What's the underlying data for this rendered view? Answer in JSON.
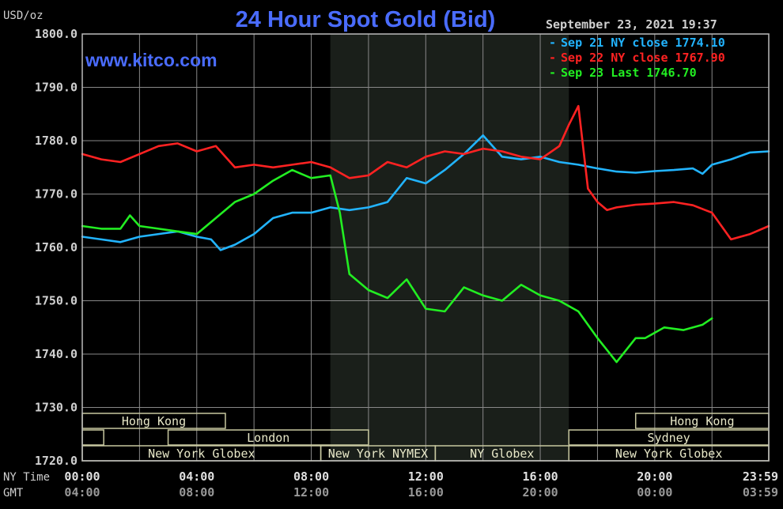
{
  "chart_data": {
    "type": "line",
    "title": "24 Hour Spot Gold (Bid)",
    "subtitle": "www.kitco.com",
    "ylabel": "USD/oz",
    "timestamp": "September 23, 2021 19:37",
    "ylim": [
      1720,
      1800
    ],
    "yticks": [
      "1800.0",
      "1790.0",
      "1780.0",
      "1770.0",
      "1760.0",
      "1750.0",
      "1740.0",
      "1730.0",
      "1720.0"
    ],
    "xlim": [
      0,
      1439
    ],
    "x_axis_labels": {
      "ny_label": "NY Time",
      "gmt_label": "GMT",
      "ny": [
        "00:00",
        "04:00",
        "08:00",
        "12:00",
        "16:00",
        "20:00",
        "23:59"
      ],
      "gmt": [
        "04:00",
        "08:00",
        "12:00",
        "16:00",
        "20:00",
        "00:00",
        "03:59"
      ]
    },
    "colors": {
      "background": "#000000",
      "grid": "#888888",
      "axis": "#bbbbbb",
      "title": "#4a6cff",
      "ny_session_shade": "#1a1f1a",
      "sep21": "#22b4ff",
      "sep22": "#ff2222",
      "sep23": "#22ee22"
    },
    "shaded_session": [
      520,
      1020
    ],
    "series": [
      {
        "name": "Sep 21 NY close 1774.10",
        "color": "#22b4ff",
        "x": [
          0,
          40,
          80,
          120,
          160,
          200,
          240,
          270,
          290,
          320,
          360,
          400,
          440,
          480,
          520,
          560,
          600,
          640,
          680,
          720,
          760,
          800,
          840,
          880,
          920,
          960,
          1000,
          1040,
          1080,
          1120,
          1160,
          1200,
          1240,
          1280,
          1300,
          1320,
          1360,
          1400,
          1439
        ],
        "values": [
          1762.0,
          1761.5,
          1761.0,
          1762.0,
          1762.5,
          1763.0,
          1762.0,
          1761.5,
          1759.5,
          1760.5,
          1762.5,
          1765.5,
          1766.5,
          1766.5,
          1767.5,
          1767.0,
          1767.5,
          1768.5,
          1773.0,
          1772.0,
          1774.5,
          1777.5,
          1781.0,
          1777.0,
          1776.5,
          1777.0,
          1776.0,
          1775.5,
          1774.8,
          1774.2,
          1774.0,
          1774.3,
          1774.5,
          1774.8,
          1773.8,
          1775.5,
          1776.5,
          1777.8,
          1778.0
        ]
      },
      {
        "name": "Sep 22 NY close 1767.90",
        "color": "#ff2222",
        "x": [
          0,
          40,
          80,
          120,
          160,
          200,
          240,
          280,
          320,
          360,
          400,
          440,
          480,
          520,
          560,
          600,
          640,
          680,
          720,
          760,
          800,
          840,
          880,
          920,
          960,
          1000,
          1020,
          1040,
          1060,
          1080,
          1100,
          1120,
          1160,
          1200,
          1240,
          1280,
          1320,
          1360,
          1400,
          1439
        ],
        "values": [
          1777.5,
          1776.5,
          1776.0,
          1777.5,
          1779.0,
          1779.5,
          1778.0,
          1779.0,
          1775.0,
          1775.5,
          1775.0,
          1775.5,
          1776.0,
          1775.0,
          1773.0,
          1773.5,
          1776.0,
          1775.0,
          1777.0,
          1778.0,
          1777.5,
          1778.5,
          1778.0,
          1777.0,
          1776.5,
          1779.0,
          1783.0,
          1786.5,
          1771.0,
          1768.5,
          1767.0,
          1767.5,
          1768.0,
          1768.2,
          1768.5,
          1767.9,
          1766.5,
          1761.5,
          1762.5,
          1764.0
        ]
      },
      {
        "name": "Sep 23 Last 1746.70",
        "color": "#22ee22",
        "x": [
          0,
          40,
          80,
          100,
          120,
          160,
          200,
          240,
          280,
          320,
          360,
          400,
          440,
          480,
          520,
          540,
          560,
          600,
          640,
          680,
          720,
          760,
          800,
          840,
          880,
          920,
          960,
          1000,
          1040,
          1080,
          1120,
          1160,
          1180,
          1220,
          1260,
          1300,
          1320
        ],
        "values": [
          1764.0,
          1763.5,
          1763.5,
          1766.0,
          1764.0,
          1763.5,
          1763.0,
          1762.5,
          1765.5,
          1768.5,
          1770.0,
          1772.5,
          1774.5,
          1773.0,
          1773.5,
          1766.5,
          1755.0,
          1752.0,
          1750.5,
          1754.0,
          1748.5,
          1748.0,
          1752.5,
          1751.0,
          1750.0,
          1753.0,
          1751.0,
          1750.0,
          1748.0,
          1743.0,
          1738.5,
          1743.0,
          1743.0,
          1745.0,
          1744.5,
          1745.5,
          1746.7
        ]
      }
    ],
    "market_sessions": {
      "row1": [
        {
          "label": "Hong Kong",
          "start": 0,
          "end": 300
        },
        {
          "label": "Hong Kong",
          "start": 1160,
          "end": 1439
        }
      ],
      "row2": [
        {
          "label": "",
          "start": 0,
          "end": 45
        },
        {
          "label": "London",
          "start": 180,
          "end": 600
        },
        {
          "label": "Sydney",
          "start": 1020,
          "end": 1439
        }
      ],
      "row3": [
        {
          "label": "New York Globex",
          "start": 0,
          "end": 500
        },
        {
          "label": "New York NYMEX",
          "start": 500,
          "end": 740
        },
        {
          "label": "NY Globex",
          "start": 740,
          "end": 1020
        },
        {
          "label": "New York Globex",
          "start": 1020,
          "end": 1439
        }
      ]
    }
  }
}
